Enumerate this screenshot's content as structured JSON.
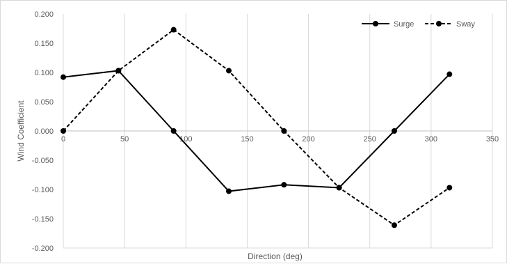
{
  "chart_data": {
    "type": "line",
    "title": "",
    "xlabel": "Direction (deg)",
    "ylabel": "Wind Coefficient",
    "xlim": [
      0,
      350
    ],
    "ylim": [
      -0.2,
      0.2
    ],
    "x_ticks": [
      0,
      50,
      100,
      150,
      200,
      250,
      300,
      350
    ],
    "y_ticks": [
      0.2,
      0.15,
      0.1,
      0.05,
      0,
      -0.05,
      -0.1,
      -0.15,
      -0.2
    ],
    "x_tick_labels": [
      "0",
      "50",
      "100",
      "150",
      "200",
      "250",
      "300",
      "350"
    ],
    "y_tick_labels": [
      "0.200",
      "0.150",
      "0.100",
      "0.050",
      "0.000",
      "-0.050",
      "-0.100",
      "-0.150",
      "-0.200"
    ],
    "grid": "vertical",
    "legend_position": "top-right",
    "series": [
      {
        "name": "Surge",
        "style": "solid",
        "color": "#000000",
        "x": [
          0,
          45,
          90,
          135,
          180,
          225,
          270,
          315
        ],
        "y": [
          0.092,
          0.103,
          0.0,
          -0.103,
          -0.092,
          -0.097,
          0.0,
          0.097
        ]
      },
      {
        "name": "Sway",
        "style": "dashed",
        "color": "#000000",
        "x": [
          0,
          45,
          90,
          135,
          180,
          225,
          270,
          315
        ],
        "y": [
          0.0,
          0.103,
          0.173,
          0.103,
          0.0,
          -0.097,
          -0.161,
          -0.097
        ]
      }
    ]
  }
}
